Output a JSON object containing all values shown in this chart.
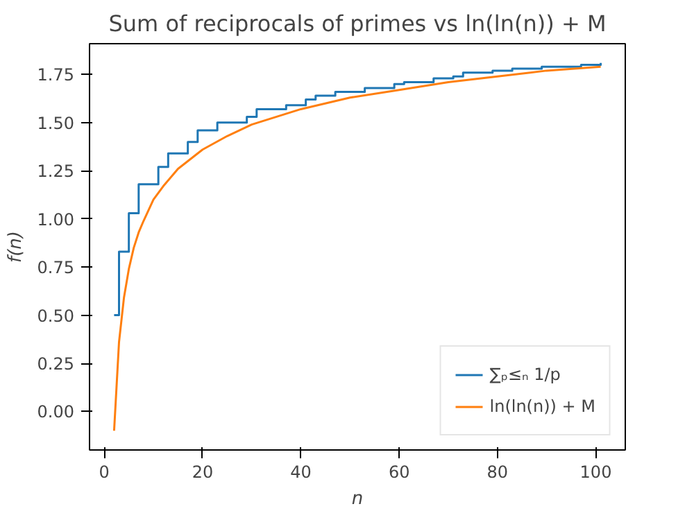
{
  "chart_data": {
    "type": "line",
    "title": "Sum of reciprocals of primes vs ln(ln(n)) + M",
    "xlabel": "n",
    "ylabel": "f(n)",
    "xlim": [
      -3,
      106
    ],
    "ylim": [
      -0.2,
      1.91
    ],
    "xticks": [
      0,
      20,
      40,
      60,
      80,
      100
    ],
    "yticks": [
      {
        "value": 0,
        "label": "0.00"
      },
      {
        "value": 0.25,
        "label": "0.25"
      },
      {
        "value": 0.5,
        "label": "0.50"
      },
      {
        "value": 0.75,
        "label": "0.75"
      },
      {
        "value": 1,
        "label": "1.00"
      },
      {
        "value": 1.25,
        "label": "1.25"
      },
      {
        "value": 1.5,
        "label": "1.50"
      },
      {
        "value": 1.75,
        "label": "1.75"
      }
    ],
    "grid": false,
    "legend": "bottom right",
    "marker": "none",
    "line_style": "solid",
    "series": [
      {
        "name": "∑ₚ≤ₙ 1/p",
        "type": "step",
        "color": "#1f77b4",
        "x": [
          2,
          3,
          5,
          7,
          11,
          13,
          17,
          19,
          23,
          29,
          31,
          37,
          41,
          43,
          47,
          53,
          59,
          61,
          67,
          71,
          73,
          79,
          83,
          89,
          97,
          101
        ],
        "values": [
          0.5,
          0.83,
          1.03,
          1.18,
          1.27,
          1.34,
          1.4,
          1.46,
          1.5,
          1.53,
          1.57,
          1.59,
          1.62,
          1.64,
          1.66,
          1.68,
          1.7,
          1.71,
          1.73,
          1.74,
          1.76,
          1.77,
          1.78,
          1.79,
          1.8,
          1.81
        ]
      },
      {
        "name": "ln(ln(n)) + M",
        "color": "#ff7f0e",
        "x": [
          2,
          3,
          4,
          5,
          6,
          7,
          8,
          10,
          12,
          15,
          20,
          25,
          30,
          40,
          50,
          60,
          70,
          80,
          90,
          101
        ],
        "values": [
          -0.1,
          0.36,
          0.59,
          0.74,
          0.85,
          0.93,
          0.99,
          1.1,
          1.17,
          1.26,
          1.36,
          1.43,
          1.49,
          1.57,
          1.63,
          1.67,
          1.71,
          1.74,
          1.77,
          1.79
        ]
      }
    ]
  }
}
